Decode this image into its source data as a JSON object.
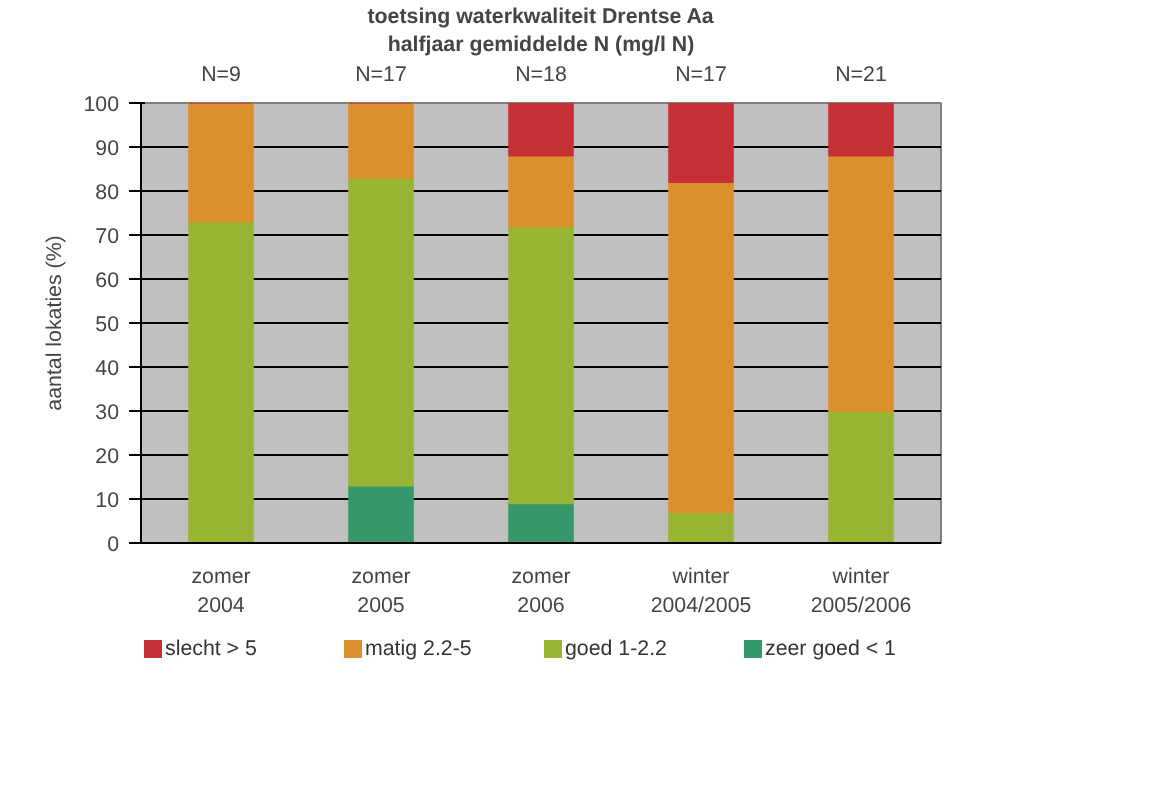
{
  "chart_data": {
    "type": "bar",
    "stacked": true,
    "title": "toetsing waterkwaliteit Drentse Aa",
    "subtitle": "halfjaar gemiddelde N (mg/l N)",
    "ylabel": "aantal lokaties (%)",
    "categories": [
      "zomer\n2004",
      "zomer\n2005",
      "zomer\n2006",
      "winter\n2004/2005",
      "winter\n2005/2006"
    ],
    "series": [
      {
        "name": "zeer goed < 1",
        "color": "#36976a",
        "values": [
          0,
          13,
          9,
          0,
          0
        ]
      },
      {
        "name": "goed 1-2.2",
        "color": "#98b534",
        "values": [
          73,
          70,
          63,
          7,
          30
        ]
      },
      {
        "name": "matig 2.2-5",
        "color": "#dc8f2e",
        "values": [
          27,
          17,
          16,
          75,
          58
        ]
      },
      {
        "name": "slecht > 5",
        "color": "#c63035",
        "values": [
          0,
          0,
          12,
          18,
          12
        ]
      }
    ],
    "annotations": [
      "N=9",
      "N=17",
      "N=18",
      "N=17",
      "N=21"
    ],
    "ylim": [
      0,
      100
    ],
    "yticks": [
      0,
      10,
      20,
      30,
      40,
      50,
      60,
      70,
      80,
      90,
      100
    ],
    "grid": "y",
    "legend": "bottom"
  }
}
